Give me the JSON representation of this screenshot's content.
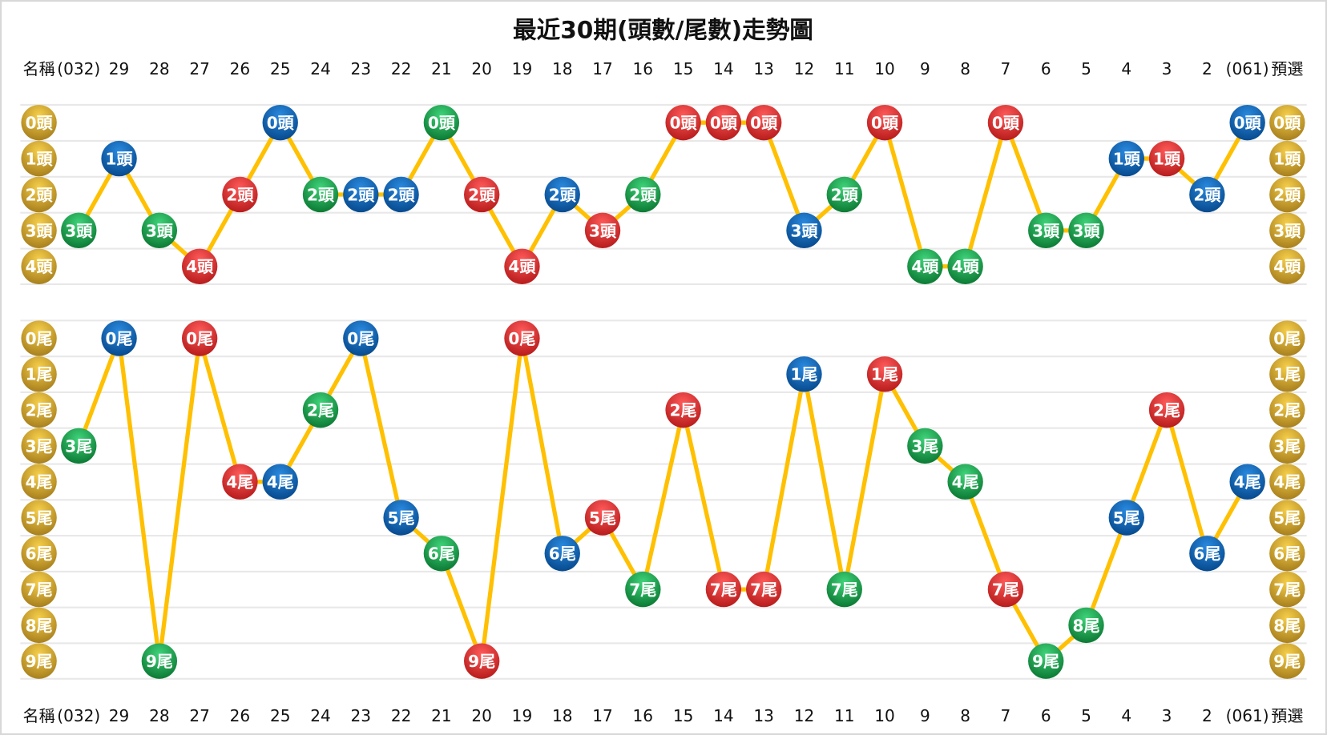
{
  "chart_data": {
    "type": "line",
    "title": "最近30期(頭數/尾數)走勢圖",
    "left_label": "名稱",
    "right_label": "預選",
    "columns": [
      "(032)",
      "29",
      "28",
      "27",
      "26",
      "25",
      "24",
      "23",
      "22",
      "21",
      "20",
      "19",
      "18",
      "17",
      "16",
      "15",
      "14",
      "13",
      "12",
      "11",
      "10",
      "9",
      "8",
      "7",
      "6",
      "5",
      "4",
      "3",
      "2",
      "(061)"
    ],
    "colors": {
      "green": "#1fa34a",
      "blue": "#0a62b8",
      "red": "#e03030",
      "gold": "#d9a92a",
      "line": "#ffc000",
      "grid": "#e8e8e8"
    },
    "column_colors": [
      "green",
      "blue",
      "green",
      "red",
      "red",
      "blue",
      "green",
      "blue",
      "blue",
      "green",
      "red",
      "red",
      "blue",
      "red",
      "green",
      "red",
      "red",
      "red",
      "blue",
      "green",
      "red",
      "green",
      "green",
      "red",
      "green",
      "green",
      "blue",
      "red",
      "blue",
      "blue"
    ],
    "head": {
      "suffix": "頭",
      "levels": [
        0,
        1,
        2,
        3,
        4
      ],
      "values": [
        3,
        1,
        3,
        4,
        2,
        0,
        2,
        2,
        2,
        0,
        2,
        4,
        2,
        3,
        2,
        0,
        0,
        0,
        3,
        2,
        0,
        4,
        4,
        0,
        3,
        3,
        1,
        1,
        2,
        0
      ]
    },
    "tail": {
      "suffix": "尾",
      "levels": [
        0,
        1,
        2,
        3,
        4,
        5,
        6,
        7,
        8,
        9
      ],
      "values": [
        3,
        0,
        9,
        0,
        4,
        4,
        2,
        0,
        5,
        6,
        9,
        0,
        6,
        5,
        7,
        2,
        7,
        7,
        1,
        7,
        1,
        3,
        4,
        7,
        9,
        8,
        5,
        2,
        6,
        4
      ]
    }
  }
}
